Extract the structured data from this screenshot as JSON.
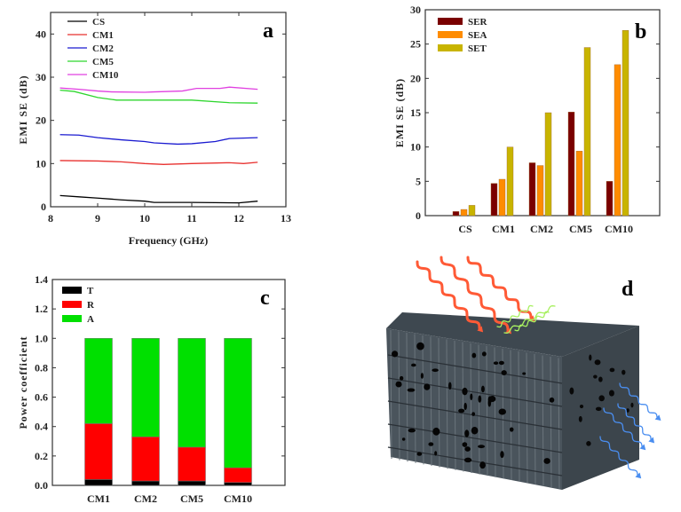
{
  "chart_data": [
    {
      "panel": "a",
      "type": "line",
      "xlabel": "Frequency (GHz)",
      "ylabel": "EMI SE (dB)",
      "xlim": [
        8,
        13
      ],
      "ylim": [
        0,
        45
      ],
      "xticks": [
        8,
        9,
        10,
        11,
        12,
        13
      ],
      "yticks": [
        0,
        10,
        20,
        30,
        40
      ],
      "legend_position": "top-left",
      "grid": false,
      "series": [
        {
          "name": "CS",
          "color": "#000000",
          "x": [
            8.2,
            8.6,
            9.0,
            9.5,
            10.0,
            10.2,
            11.0,
            12.0,
            12.4
          ],
          "y": [
            2.6,
            2.3,
            2.0,
            1.6,
            1.3,
            1.0,
            1.0,
            0.9,
            1.3
          ]
        },
        {
          "name": "CM1",
          "color": "#e8312f",
          "x": [
            8.2,
            9.0,
            9.5,
            10.0,
            10.4,
            11.0,
            11.8,
            12.1,
            12.4
          ],
          "y": [
            10.7,
            10.6,
            10.4,
            10.0,
            9.8,
            10.0,
            10.2,
            10.0,
            10.3
          ]
        },
        {
          "name": "CM2",
          "color": "#1a1ad0",
          "x": [
            8.2,
            8.6,
            9.0,
            9.5,
            10.0,
            10.2,
            10.7,
            11.0,
            11.5,
            11.8,
            12.4
          ],
          "y": [
            16.7,
            16.6,
            16.0,
            15.5,
            15.1,
            14.8,
            14.5,
            14.6,
            15.1,
            15.8,
            16.0
          ]
        },
        {
          "name": "CM5",
          "color": "#2ed62e",
          "x": [
            8.2,
            8.5,
            9.0,
            9.4,
            10.0,
            11.0,
            11.8,
            12.4
          ],
          "y": [
            27.0,
            26.7,
            25.3,
            24.7,
            24.7,
            24.7,
            24.1,
            24.0
          ]
        },
        {
          "name": "CM10",
          "color": "#e040e0",
          "x": [
            8.2,
            8.6,
            9.0,
            9.3,
            10.0,
            10.2,
            10.8,
            11.1,
            11.6,
            11.8,
            12.4
          ],
          "y": [
            27.5,
            27.2,
            26.8,
            26.6,
            26.5,
            26.6,
            26.8,
            27.4,
            27.4,
            27.7,
            27.2
          ]
        }
      ]
    },
    {
      "panel": "b",
      "type": "bar",
      "xlabel": "",
      "ylabel": "EMI SE (dB)",
      "ylim": [
        0,
        30
      ],
      "yticks": [
        0,
        5,
        10,
        15,
        20,
        25,
        30
      ],
      "categories": [
        "CS",
        "CM1",
        "CM2",
        "CM5",
        "CM10"
      ],
      "legend_position": "top-left",
      "grid": false,
      "series": [
        {
          "name": "SER",
          "color": "#7a0000",
          "values": [
            0.6,
            4.7,
            7.7,
            15.1,
            5.0
          ]
        },
        {
          "name": "SEA",
          "color": "#ff8c00",
          "values": [
            0.9,
            5.3,
            7.3,
            9.4,
            22.0
          ]
        },
        {
          "name": "SET",
          "color": "#c8b400",
          "values": [
            1.5,
            10.0,
            15.0,
            24.5,
            27.0
          ]
        }
      ]
    },
    {
      "panel": "c",
      "type": "bar",
      "stacked": true,
      "xlabel": "",
      "ylabel": "Power coefficient",
      "ylim": [
        0,
        1.4
      ],
      "yticks": [
        "0.0",
        "0.2",
        "0.4",
        "0.6",
        "0.8",
        "1.0",
        "1.2",
        "1.4"
      ],
      "categories": [
        "CM1",
        "CM2",
        "CM5",
        "CM10"
      ],
      "legend_position": "top-left",
      "grid": false,
      "series": [
        {
          "name": "T",
          "color": "#000000",
          "values": [
            0.04,
            0.03,
            0.03,
            0.02
          ]
        },
        {
          "name": "R",
          "color": "#ff0000",
          "values": [
            0.38,
            0.3,
            0.23,
            0.1
          ]
        },
        {
          "name": "A",
          "color": "#00e000",
          "values": [
            0.58,
            0.67,
            0.74,
            0.88
          ]
        }
      ]
    }
  ],
  "illustration": {
    "panel": "d",
    "colors": {
      "incident_wave": "#ff5a36",
      "reflected_wave": "#a8f060",
      "transmitted_wave": "#4a8ef0",
      "foam": "#4a545c"
    }
  }
}
